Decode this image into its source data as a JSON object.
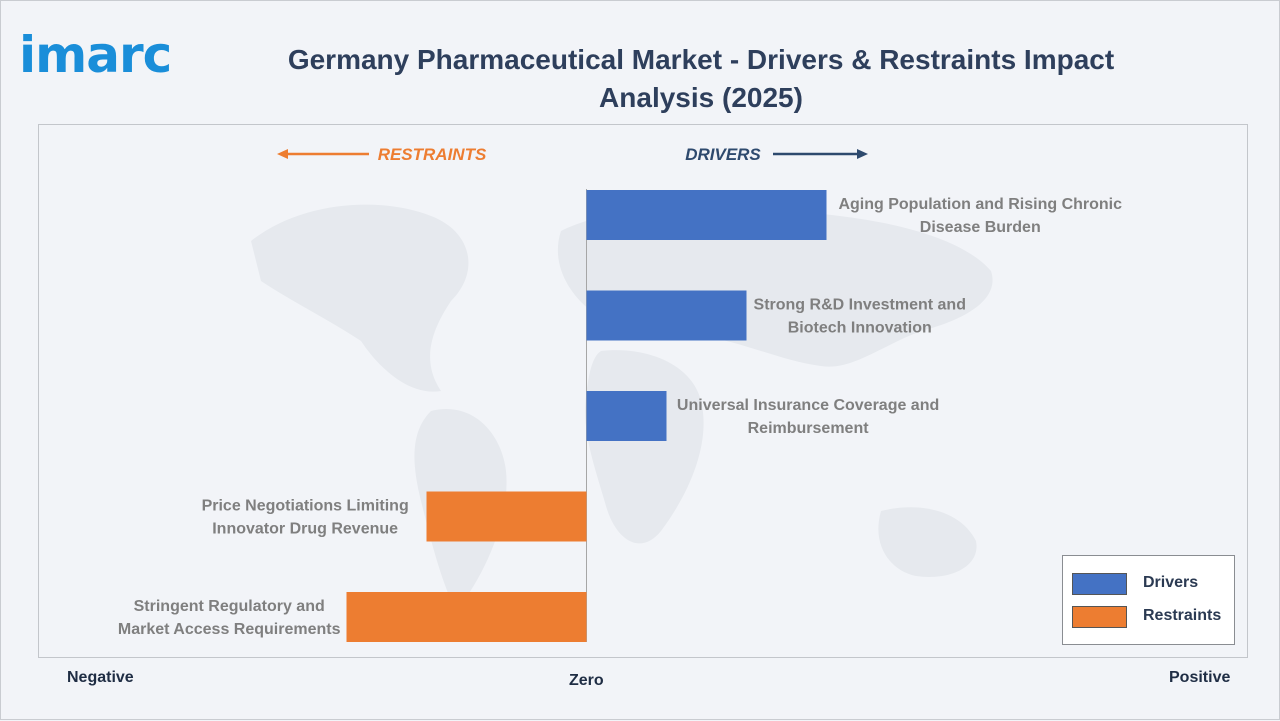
{
  "brand": {
    "logo_text": "imarc",
    "logo_color": "#1a8ed9"
  },
  "header": {
    "title": "Germany Pharmaceutical Market - Drivers & Restraints Impact Analysis (2025)"
  },
  "direction_labels": {
    "restraints": "RESTRAINTS",
    "drivers": "DRIVERS"
  },
  "axis_words": {
    "negative": "Negative",
    "zero": "Zero",
    "positive": "Positive"
  },
  "legend": {
    "drivers_label": "Drivers",
    "restraints_label": "Restraints"
  },
  "colors": {
    "drivers": "#4472c4",
    "restraints": "#ed7d31",
    "title": "#2e3f5c",
    "restraints_text": "#ed7d31",
    "drivers_text": "#2e4a6e",
    "bar_label": "#7f7f7f",
    "map": "#e6e9ee"
  },
  "chart_data": {
    "type": "bar",
    "orientation": "horizontal",
    "title": "Germany Pharmaceutical Market - Drivers & Restraints Impact Analysis (2025)",
    "series": [
      {
        "name": "Drivers",
        "color": "#4472c4"
      },
      {
        "name": "Restraints",
        "color": "#ed7d31"
      }
    ],
    "xlim": [
      -3,
      3
    ],
    "categories": [
      "Aging Population and Rising Chronic Disease Burden",
      "Strong R&D Investment and Biotech Innovation",
      "Universal Insurance Coverage and Reimbursement",
      "Price Negotiations Limiting Innovator Drug Revenue",
      "Stringent Regulatory and Market Access Requirements"
    ],
    "bars": [
      {
        "label_lines": [
          "Aging Population and Rising Chronic",
          "Disease Burden"
        ],
        "series": "Drivers",
        "value": 3
      },
      {
        "label_lines": [
          "Strong R&D Investment and",
          "Biotech Innovation"
        ],
        "series": "Drivers",
        "value": 2
      },
      {
        "label_lines": [
          "Universal Insurance Coverage and",
          "Reimbursement"
        ],
        "series": "Drivers",
        "value": 1
      },
      {
        "label_lines": [
          "Price Negotiations Limiting",
          "Innovator Drug Revenue"
        ],
        "series": "Restraints",
        "value": -2
      },
      {
        "label_lines": [
          "Stringent Regulatory and",
          "Market Access Requirements"
        ],
        "series": "Restraints",
        "value": -3
      }
    ]
  }
}
